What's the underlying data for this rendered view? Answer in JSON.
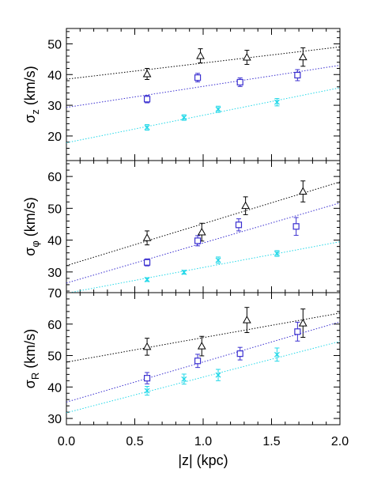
{
  "chart_data": {
    "type": "scatter",
    "xlabel": "|z| (kpc)",
    "xlim": [
      0.0,
      2.0
    ],
    "xticks": [
      "0.0",
      "0.5",
      "1.0",
      "1.5",
      "2.0"
    ],
    "colors": {
      "black": "#000000",
      "blue": "#3a2fd0",
      "cyan": "#22d8e8"
    },
    "markers": {
      "black": "triangle",
      "blue": "square",
      "cyan": "x"
    },
    "panels": [
      {
        "ylabel_main": "σ",
        "ylabel_sub": "z",
        "ylabel_rest": " (km/s)",
        "ylim": [
          12,
          55
        ],
        "yticks": [
          "10",
          "20",
          "30",
          "40",
          "50"
        ],
        "series": [
          {
            "key": "black",
            "x": [
              0.59,
              0.98,
              1.32,
              1.73
            ],
            "y": [
              40.2,
              46.1,
              45.6,
              45.7
            ],
            "err": [
              1.8,
              2.3,
              2.3,
              3.0
            ],
            "fit": [
              38.5,
              49.0
            ]
          },
          {
            "key": "blue",
            "x": [
              0.59,
              0.96,
              1.27,
              1.69
            ],
            "y": [
              32.0,
              39.0,
              37.5,
              39.8
            ],
            "err": [
              1.2,
              1.4,
              1.4,
              1.8
            ],
            "fit": [
              29.3,
              43.0
            ]
          },
          {
            "key": "cyan",
            "x": [
              0.59,
              0.86,
              1.11,
              1.54
            ],
            "y": [
              22.8,
              26.0,
              28.7,
              31.0
            ],
            "err": [
              0.9,
              0.9,
              1.0,
              1.2
            ],
            "fit": [
              17.8,
              35.7
            ]
          }
        ]
      },
      {
        "ylabel_main": "σ",
        "ylabel_sub": "φ",
        "ylabel_rest": " (km/s)",
        "ylim": [
          23.5,
          65
        ],
        "yticks": [
          "30",
          "40",
          "50",
          "60"
        ],
        "series": [
          {
            "key": "black",
            "x": [
              0.59,
              0.99,
              1.31,
              1.73
            ],
            "y": [
              40.7,
              42.5,
              50.8,
              55.3
            ],
            "err": [
              2.2,
              2.8,
              2.8,
              3.3
            ],
            "fit": [
              32.0,
              58.3
            ]
          },
          {
            "key": "blue",
            "x": [
              0.59,
              0.96,
              1.26,
              1.68
            ],
            "y": [
              33.0,
              39.8,
              44.8,
              44.3
            ],
            "err": [
              1.1,
              1.6,
              1.9,
              2.8
            ],
            "fit": [
              26.5,
              51.7
            ]
          },
          {
            "key": "cyan",
            "x": [
              0.59,
              0.86,
              1.11,
              1.54
            ],
            "y": [
              27.6,
              29.9,
              33.7,
              35.8
            ],
            "err": [
              0.6,
              0.6,
              1.0,
              0.9
            ],
            "fit": [
              23.3,
              39.5
            ]
          }
        ]
      },
      {
        "ylabel_main": "σ",
        "ylabel_sub": "R",
        "ylabel_rest": " (km/s)",
        "ylim": [
          28,
          70
        ],
        "yticks": [
          "30",
          "40",
          "50",
          "60",
          "70"
        ],
        "series": [
          {
            "key": "black",
            "x": [
              0.59,
              0.99,
              1.32,
              1.73
            ],
            "y": [
              52.8,
              53.0,
              61.3,
              60.3
            ],
            "err": [
              2.7,
              3.1,
              4.0,
              4.5
            ],
            "fit": [
              47.9,
              63.5
            ]
          },
          {
            "key": "blue",
            "x": [
              0.59,
              0.96,
              1.27,
              1.69
            ],
            "y": [
              42.8,
              48.3,
              50.6,
              57.6
            ],
            "err": [
              1.8,
              2.1,
              2.0,
              3.0
            ],
            "fit": [
              35.2,
              60.7
            ]
          },
          {
            "key": "cyan",
            "x": [
              0.59,
              0.86,
              1.11,
              1.54
            ],
            "y": [
              38.8,
              42.5,
              43.8,
              50.3
            ],
            "err": [
              1.4,
              1.6,
              1.8,
              2.1
            ],
            "fit": [
              31.8,
              54.5
            ]
          }
        ]
      }
    ]
  }
}
